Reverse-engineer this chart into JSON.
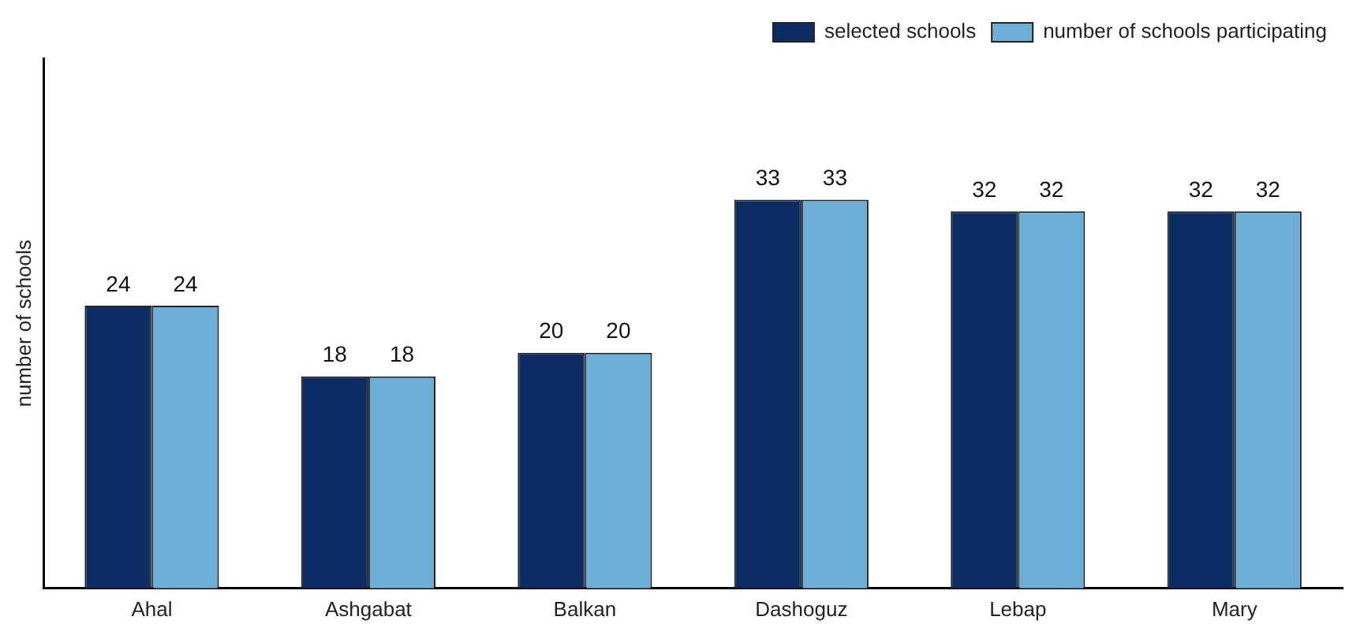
{
  "chart_data": {
    "type": "bar",
    "ylabel": "number of schools",
    "categories": [
      "Ahal",
      "Ashgabat",
      "Balkan",
      "Dashoguz",
      "Lebap",
      "Mary"
    ],
    "series": [
      {
        "name": "selected schools",
        "color": "#0b2d63",
        "values": [
          24,
          18,
          20,
          33,
          32,
          32
        ]
      },
      {
        "name": "number of schools participating",
        "color": "#6baed6",
        "values": [
          24,
          18,
          20,
          33,
          32,
          32
        ]
      }
    ],
    "ylim": [
      0,
      45
    ],
    "tick_labels": "x",
    "data_labels": true,
    "grid": false,
    "legend": "top right"
  }
}
